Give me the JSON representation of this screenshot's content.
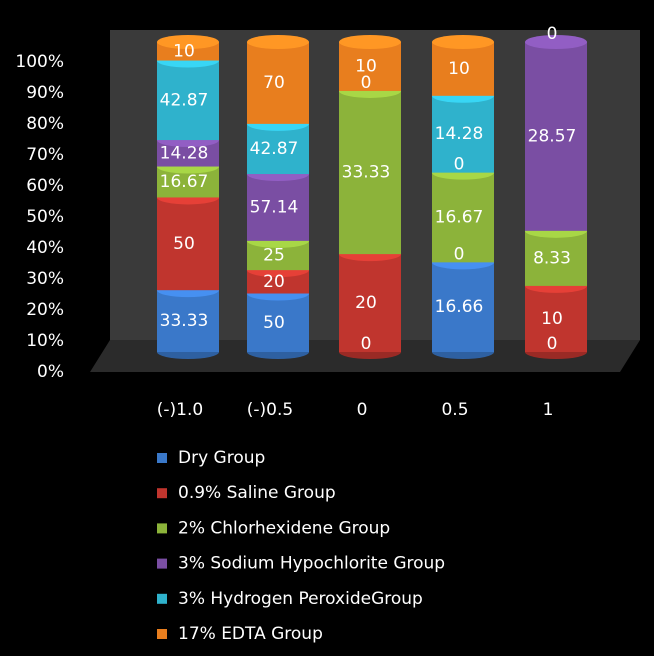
{
  "chart_data": {
    "type": "stacked_percent_cylinder",
    "categories": [
      "(-)1.0",
      "(-)0.5",
      "0",
      "0.5",
      "1"
    ],
    "series": [
      {
        "name": "Dry Group",
        "color": "#3a78c9",
        "values": [
          33.33,
          50,
          0,
          16.66,
          0
        ]
      },
      {
        "name": "0.9% Saline Group",
        "color": "#c0352e",
        "values": [
          50,
          20,
          20,
          0,
          10
        ]
      },
      {
        "name": "2% Chlorhexidene Group",
        "color": "#8cb33a",
        "values": [
          16.67,
          25,
          33.33,
          16.67,
          8.33
        ]
      },
      {
        "name": "3% Sodium Hypochlorite Group",
        "color": "#7a4ea3",
        "values": [
          14.28,
          57.14,
          0,
          0,
          28.57
        ]
      },
      {
        "name": "3% Hydrogen PeroxideGroup",
        "color": "#2fb2cc",
        "values": [
          42.87,
          42.87,
          null,
          14.28,
          null
        ]
      },
      {
        "name": "17% EDTA Group",
        "color": "#e87e1e",
        "values": [
          10,
          70,
          10,
          10,
          0
        ]
      }
    ],
    "ylim": [
      0,
      100
    ],
    "yticks": [
      {
        "value": 0,
        "label": "0%"
      },
      {
        "value": 10,
        "label": "10%"
      },
      {
        "value": 20,
        "label": "20%"
      },
      {
        "value": 30,
        "label": "30%"
      },
      {
        "value": 40,
        "label": "40%"
      },
      {
        "value": 50,
        "label": "50%"
      },
      {
        "value": 60,
        "label": "60%"
      },
      {
        "value": 70,
        "label": "70%"
      },
      {
        "value": 80,
        "label": "80%"
      },
      {
        "value": 90,
        "label": "90%"
      },
      {
        "value": 100,
        "label": "100%"
      }
    ]
  }
}
